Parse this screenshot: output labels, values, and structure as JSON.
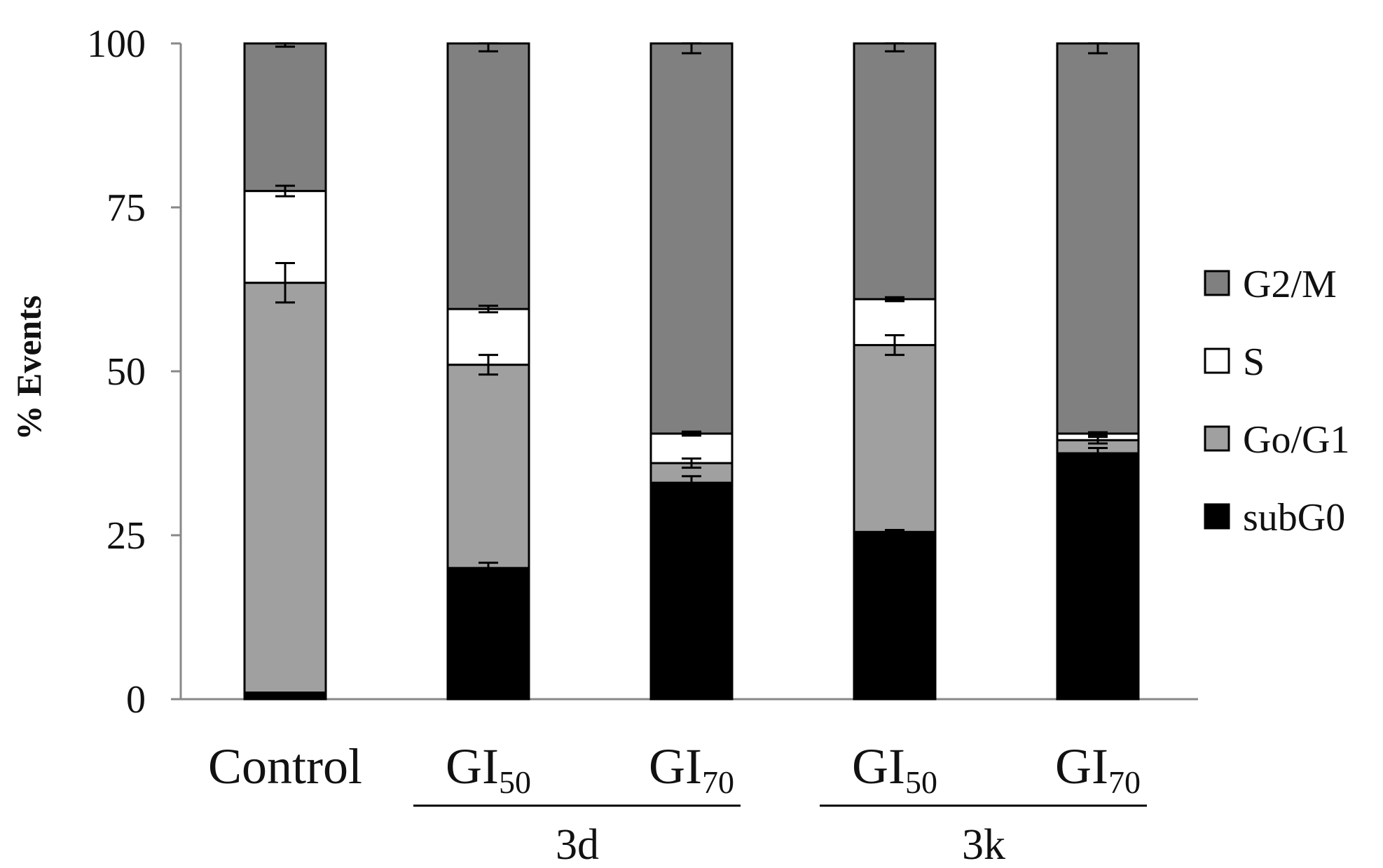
{
  "chart_data": {
    "type": "bar",
    "stacked": true,
    "title": "",
    "xlabel": "",
    "ylabel": "% Events",
    "ylim": [
      0,
      100
    ],
    "yticks": [
      0,
      25,
      50,
      75,
      100
    ],
    "grid": false,
    "legend_position": "right",
    "categories": [
      {
        "main": "Control",
        "sub": ""
      },
      {
        "main": "GI",
        "sub": "50"
      },
      {
        "main": "GI",
        "sub": "70"
      },
      {
        "main": "GI",
        "sub": "50"
      },
      {
        "main": "GI",
        "sub": "70"
      }
    ],
    "groups": [
      {
        "label": "3d",
        "categories": [
          1,
          2
        ]
      },
      {
        "label": "3k",
        "categories": [
          3,
          4
        ]
      }
    ],
    "series": [
      {
        "name": "subG0",
        "color": "#000000",
        "values": [
          1,
          20,
          33,
          25.5,
          37.5
        ],
        "errors": [
          0,
          0.8,
          1,
          0.3,
          0.8
        ]
      },
      {
        "name": "Go/G1",
        "color": "#a0a0a0",
        "values": [
          62.5,
          31,
          3,
          28.5,
          2
        ],
        "errors": [
          3,
          1.5,
          0.7,
          1.5,
          0.5
        ]
      },
      {
        "name": "S",
        "color": "#ffffff",
        "values": [
          14,
          8.5,
          4.5,
          7,
          1
        ],
        "errors": [
          0.8,
          0.5,
          0.3,
          0.3,
          0.2
        ]
      },
      {
        "name": "G2/M",
        "color": "#808080",
        "values": [
          22.5,
          40.5,
          59.5,
          39,
          59.5
        ],
        "errors": [
          0.5,
          1.2,
          1.5,
          1.2,
          1.5
        ]
      }
    ],
    "legend_order": [
      "G2/M",
      "S",
      "Go/G1",
      "subG0"
    ]
  }
}
